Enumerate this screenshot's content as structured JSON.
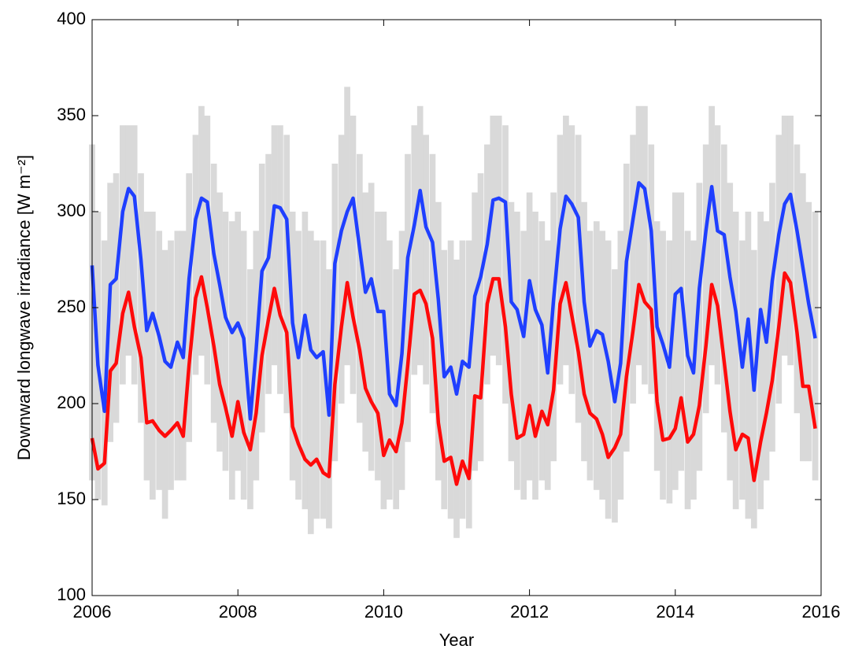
{
  "chart_data": {
    "type": "line",
    "xlabel": "Year",
    "ylabel": "Downward longwave irradiance [W m⁻²]",
    "xlim": [
      2006,
      2016
    ],
    "xticks": [
      2006,
      2008,
      2010,
      2012,
      2014,
      2016
    ],
    "ylim": [
      100,
      400
    ],
    "yticks": [
      100,
      150,
      200,
      250,
      300,
      350,
      400
    ],
    "x": [
      2006.0,
      2006.08,
      2006.17,
      2006.25,
      2006.33,
      2006.42,
      2006.5,
      2006.58,
      2006.67,
      2006.75,
      2006.83,
      2006.92,
      2007.0,
      2007.08,
      2007.17,
      2007.25,
      2007.33,
      2007.42,
      2007.5,
      2007.58,
      2007.67,
      2007.75,
      2007.83,
      2007.92,
      2008.0,
      2008.08,
      2008.17,
      2008.25,
      2008.33,
      2008.42,
      2008.5,
      2008.58,
      2008.67,
      2008.75,
      2008.83,
      2008.92,
      2009.0,
      2009.08,
      2009.17,
      2009.25,
      2009.33,
      2009.42,
      2009.5,
      2009.58,
      2009.67,
      2009.75,
      2009.83,
      2009.92,
      2010.0,
      2010.08,
      2010.17,
      2010.25,
      2010.33,
      2010.42,
      2010.5,
      2010.58,
      2010.67,
      2010.75,
      2010.83,
      2010.92,
      2011.0,
      2011.08,
      2011.17,
      2011.25,
      2011.33,
      2011.42,
      2011.5,
      2011.58,
      2011.67,
      2011.75,
      2011.83,
      2011.92,
      2012.0,
      2012.08,
      2012.17,
      2012.25,
      2012.33,
      2012.42,
      2012.5,
      2012.58,
      2012.67,
      2012.75,
      2012.83,
      2012.92,
      2013.0,
      2013.08,
      2013.17,
      2013.25,
      2013.33,
      2013.42,
      2013.5,
      2013.58,
      2013.67,
      2013.75,
      2013.83,
      2013.92,
      2014.0,
      2014.08,
      2014.17,
      2014.25,
      2014.33,
      2014.42,
      2014.5,
      2014.58,
      2014.67,
      2014.75,
      2014.83,
      2014.92,
      2015.0,
      2015.08,
      2015.17,
      2015.25,
      2015.33,
      2015.42,
      2015.5,
      2015.58,
      2015.67,
      2015.75,
      2015.83,
      2015.92
    ],
    "range": {
      "color": "#d9d9d9",
      "low": [
        160,
        150,
        147,
        180,
        190,
        210,
        225,
        210,
        190,
        160,
        150,
        155,
        140,
        155,
        160,
        160,
        180,
        215,
        225,
        210,
        190,
        175,
        165,
        150,
        165,
        150,
        145,
        160,
        185,
        205,
        220,
        205,
        195,
        160,
        150,
        145,
        132,
        140,
        140,
        135,
        170,
        200,
        220,
        205,
        190,
        175,
        165,
        160,
        145,
        150,
        145,
        155,
        180,
        215,
        220,
        210,
        195,
        160,
        145,
        140,
        130,
        140,
        135,
        165,
        170,
        210,
        225,
        220,
        200,
        170,
        155,
        150,
        160,
        150,
        160,
        155,
        170,
        210,
        220,
        205,
        190,
        170,
        160,
        155,
        150,
        140,
        138,
        150,
        175,
        200,
        220,
        210,
        205,
        165,
        150,
        148,
        155,
        165,
        145,
        150,
        165,
        195,
        220,
        210,
        185,
        160,
        145,
        150,
        140,
        135,
        145,
        160,
        175,
        200,
        225,
        220,
        195,
        170,
        170,
        160
      ],
      "high": [
        335,
        300,
        285,
        315,
        320,
        345,
        345,
        345,
        320,
        300,
        300,
        290,
        280,
        285,
        290,
        290,
        320,
        340,
        355,
        350,
        325,
        310,
        300,
        295,
        300,
        290,
        270,
        290,
        325,
        330,
        345,
        345,
        340,
        300,
        290,
        300,
        290,
        285,
        285,
        270,
        325,
        340,
        365,
        350,
        330,
        310,
        315,
        300,
        300,
        285,
        270,
        290,
        330,
        345,
        355,
        340,
        330,
        305,
        280,
        285,
        275,
        285,
        285,
        310,
        320,
        335,
        350,
        350,
        345,
        305,
        300,
        290,
        310,
        300,
        295,
        285,
        310,
        340,
        350,
        345,
        340,
        305,
        290,
        295,
        290,
        285,
        270,
        290,
        325,
        340,
        355,
        355,
        335,
        295,
        290,
        285,
        310,
        310,
        290,
        285,
        315,
        335,
        355,
        345,
        335,
        315,
        300,
        285,
        300,
        280,
        300,
        295,
        315,
        340,
        350,
        350,
        335,
        320,
        305,
        300
      ]
    },
    "series": [
      {
        "color": "#1f3fff",
        "values": [
          272,
          220,
          196,
          262,
          265,
          300,
          312,
          308,
          275,
          238,
          247,
          235,
          222,
          219,
          232,
          224,
          265,
          296,
          307,
          305,
          278,
          262,
          245,
          237,
          242,
          234,
          192,
          228,
          269,
          276,
          303,
          302,
          296,
          242,
          224,
          246,
          228,
          224,
          227,
          194,
          273,
          290,
          300,
          307,
          281,
          258,
          265,
          248,
          248,
          205,
          199,
          226,
          276,
          293,
          311,
          292,
          284,
          254,
          214,
          219,
          205,
          222,
          219,
          256,
          266,
          283,
          306,
          307,
          305,
          253,
          249,
          235,
          264,
          249,
          241,
          216,
          254,
          291,
          308,
          304,
          297,
          253,
          230,
          238,
          236,
          222,
          201,
          221,
          274,
          296,
          315,
          312,
          290,
          240,
          231,
          219,
          257,
          260,
          225,
          216,
          260,
          290,
          313,
          290,
          288,
          266,
          248,
          219,
          244,
          207,
          249,
          232,
          264,
          288,
          304,
          309,
          290,
          271,
          252,
          234
        ]
      },
      {
        "color": "#ff0a0a",
        "values": [
          182,
          166,
          169,
          217,
          221,
          247,
          258,
          240,
          224,
          190,
          191,
          186,
          183,
          186,
          190,
          183,
          220,
          255,
          266,
          250,
          230,
          210,
          198,
          183,
          201,
          185,
          176,
          195,
          225,
          244,
          260,
          246,
          237,
          188,
          179,
          171,
          168,
          171,
          164,
          162,
          210,
          240,
          263,
          245,
          228,
          208,
          201,
          195,
          173,
          181,
          175,
          190,
          220,
          257,
          259,
          252,
          234,
          190,
          170,
          172,
          158,
          170,
          161,
          204,
          203,
          252,
          265,
          265,
          240,
          205,
          182,
          184,
          199,
          183,
          196,
          189,
          207,
          252,
          263,
          246,
          227,
          205,
          195,
          192,
          184,
          172,
          177,
          184,
          214,
          238,
          262,
          253,
          249,
          201,
          181,
          182,
          187,
          203,
          180,
          184,
          199,
          230,
          262,
          251,
          222,
          196,
          176,
          184,
          182,
          160,
          180,
          195,
          212,
          240,
          268,
          263,
          237,
          209,
          209,
          187
        ]
      }
    ]
  }
}
